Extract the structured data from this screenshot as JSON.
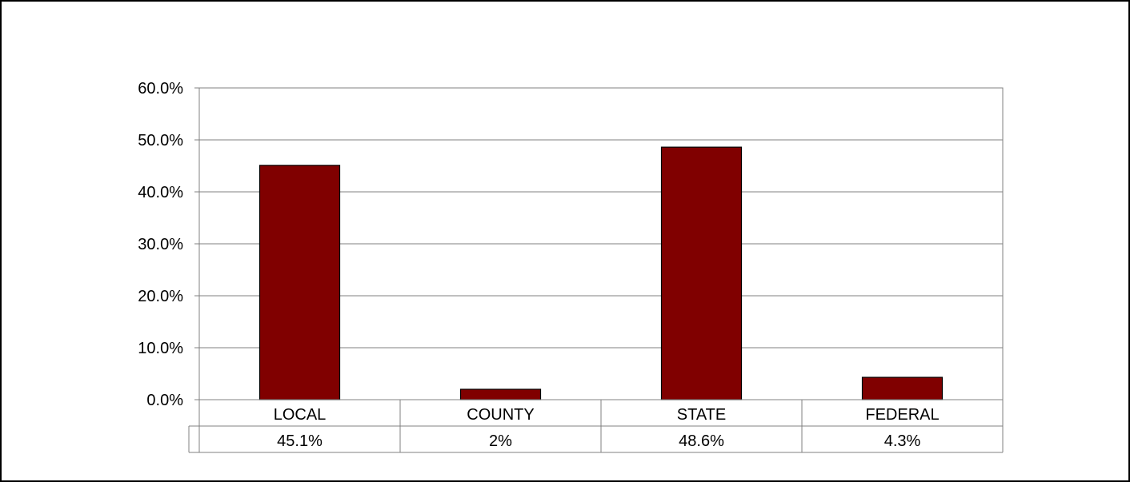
{
  "chart_data": {
    "type": "bar",
    "title": "",
    "xlabel": "",
    "ylabel": "",
    "categories": [
      "LOCAL",
      "COUNTY",
      "STATE",
      "FEDERAL"
    ],
    "values": [
      45.1,
      2.0,
      48.6,
      4.3
    ],
    "data_table_labels": [
      "45.1%",
      "2%",
      "48.6%",
      "4.3%"
    ],
    "y_ticks": [
      0,
      10,
      20,
      30,
      40,
      50,
      60
    ],
    "y_tick_labels": [
      "0.0%",
      "10.0%",
      "20.0%",
      "30.0%",
      "40.0%",
      "50.0%",
      "60.0%"
    ],
    "ylim": [
      0,
      60
    ],
    "grid": true,
    "legend": "none",
    "colors": {
      "bar": "#800000",
      "bar_edge": "#000000",
      "grid": "#808080",
      "axis": "#808080"
    }
  }
}
